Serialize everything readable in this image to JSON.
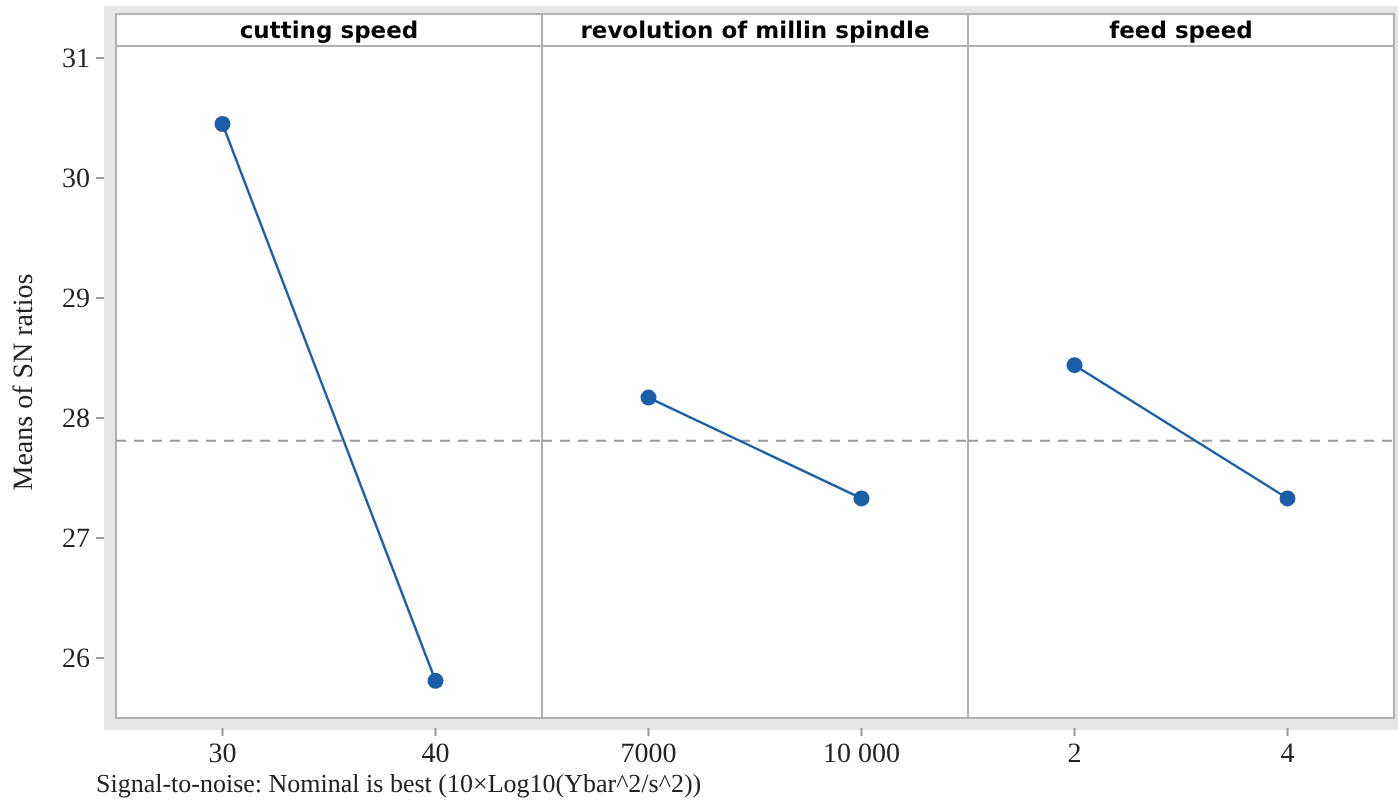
{
  "chart_data": [
    {
      "type": "line",
      "title": "cutting speed",
      "ylabel": "Means of SN ratios",
      "categories": [
        "30",
        "40"
      ],
      "series": [
        {
          "color": "#1a5ea8",
          "values": [
            30.45,
            25.81
          ]
        }
      ],
      "ylim": [
        25.5,
        31.1
      ],
      "yticks": [
        26,
        27,
        28,
        29,
        30,
        31
      ],
      "marker": "circle",
      "line_style": "solid",
      "grid": false,
      "ref_lines": [
        {
          "axis": "y",
          "value": 27.81,
          "line_style": "dashed",
          "color": "#999999"
        }
      ],
      "annotations": [
        "Signal-to-noise: Nominal is best (10×Log10(Ybar^2/s^2))"
      ]
    },
    {
      "type": "line",
      "title": "revolution of millin spindle",
      "categories": [
        "7000",
        "10 000"
      ],
      "series": [
        {
          "color": "#1a5ea8",
          "values": [
            28.17,
            27.33
          ]
        }
      ],
      "ylim": [
        25.5,
        31.1
      ],
      "marker": "circle",
      "line_style": "solid",
      "grid": false,
      "tick_labels": "x",
      "ref_lines": [
        {
          "axis": "y",
          "value": 27.81,
          "line_style": "dashed",
          "color": "#999999"
        }
      ]
    },
    {
      "type": "line",
      "title": "feed speed",
      "categories": [
        "2",
        "4"
      ],
      "series": [
        {
          "color": "#1a5ea8",
          "values": [
            28.44,
            27.33
          ]
        }
      ],
      "ylim": [
        25.5,
        31.1
      ],
      "marker": "circle",
      "line_style": "solid",
      "grid": false,
      "tick_labels": "x",
      "ref_lines": [
        {
          "axis": "y",
          "value": 27.81,
          "line_style": "dashed",
          "color": "#999999"
        }
      ]
    }
  ]
}
